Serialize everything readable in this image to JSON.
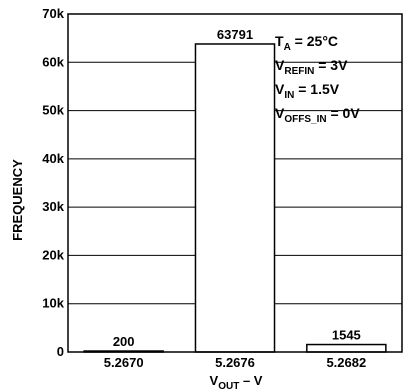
{
  "chart_data": {
    "type": "bar",
    "categories": [
      "5.2670",
      "5.2676",
      "5.2682"
    ],
    "values": [
      200,
      63791,
      1545
    ],
    "data_labels": [
      "200",
      "63791",
      "1545"
    ],
    "ylabel": "FREQUENCY",
    "xlabel_main": "V",
    "xlabel_sub": "OUT",
    "xlabel_suffix": " – V",
    "ylim": [
      0,
      70000
    ],
    "yticks": [
      0,
      10000,
      20000,
      30000,
      40000,
      50000,
      60000,
      70000
    ],
    "ytick_labels": [
      "0",
      "10k",
      "20k",
      "30k",
      "40k",
      "50k",
      "60k",
      "70k"
    ],
    "grid": "horizontal",
    "colors": {
      "bar_fill": "#ffffff",
      "stroke": "#000000"
    },
    "annotations": [
      {
        "main": "T",
        "sub": "A",
        "rest": " = 25°C"
      },
      {
        "main": "V",
        "sub": "REFIN",
        "rest": " = 3V"
      },
      {
        "main": "V",
        "sub": "IN",
        "rest": " = 1.5V"
      },
      {
        "main": "V",
        "sub": "OFFS_IN",
        "rest": " = 0V"
      }
    ]
  }
}
